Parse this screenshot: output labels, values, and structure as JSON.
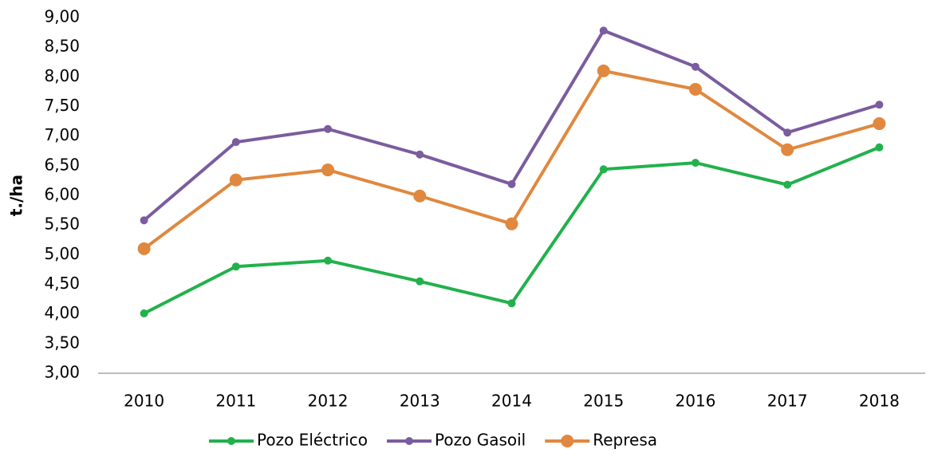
{
  "chart_data": {
    "type": "line",
    "y_label": "t./ha",
    "categories": [
      "2010",
      "2011",
      "2012",
      "2013",
      "2014",
      "2015",
      "2016",
      "2017",
      "2018"
    ],
    "series": [
      {
        "name": "Pozo Eléctrico",
        "color": "#22b14c",
        "values": [
          4.01,
          4.8,
          4.9,
          4.55,
          4.18,
          6.44,
          6.55,
          6.18,
          6.81
        ]
      },
      {
        "name": "Pozo Gasoil",
        "color": "#7b5c9e",
        "values": [
          5.58,
          6.9,
          7.12,
          6.69,
          6.19,
          8.78,
          8.17,
          7.06,
          7.53
        ]
      },
      {
        "name": "Represa",
        "color": "#e0883f",
        "values": [
          5.1,
          6.26,
          6.43,
          5.99,
          5.52,
          8.1,
          7.79,
          6.77,
          7.21
        ]
      }
    ],
    "ylim": [
      3,
      9
    ],
    "yticks": [
      {
        "value": 3,
        "label": "3,00"
      },
      {
        "value": 3.5,
        "label": "3,50"
      },
      {
        "value": 4,
        "label": "4,00"
      },
      {
        "value": 4.5,
        "label": "4,50"
      },
      {
        "value": 5,
        "label": "5,00"
      },
      {
        "value": 5.5,
        "label": "5,50"
      },
      {
        "value": 6,
        "label": "6,00"
      },
      {
        "value": 6.5,
        "label": "6,50"
      },
      {
        "value": 7,
        "label": "7,00"
      },
      {
        "value": 7.5,
        "label": "7,50"
      },
      {
        "value": 8,
        "label": "8,00"
      },
      {
        "value": 8.5,
        "label": "8,50"
      },
      {
        "value": 9,
        "label": "9,00"
      }
    ],
    "grid": false,
    "legend": "bottom"
  }
}
